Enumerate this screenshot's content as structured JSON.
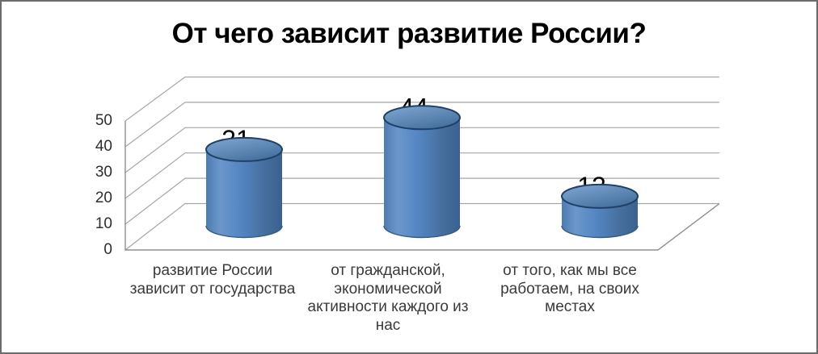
{
  "window": {
    "background": "#FFFFFF",
    "border_color": "#6B6B6B"
  },
  "chart_data": {
    "type": "bar",
    "subtype": "3d-cylinder",
    "title": "От чего зависит развитие России?",
    "categories": [
      "развитие России зависит от государства",
      "от гражданской, экономической активности каждого из нас",
      "от того, как мы все работаем, на своих местах"
    ],
    "category_lines": [
      [
        "развитие России",
        "зависит от государства"
      ],
      [
        "от гражданской,",
        "экономической",
        "активности каждого из",
        "нас"
      ],
      [
        "от того, как мы все",
        "работаем, на своих",
        "местах"
      ]
    ],
    "values": [
      31,
      44,
      12
    ],
    "xlabel": "",
    "ylabel": "",
    "ylim": [
      0,
      50
    ],
    "yticks": [
      0,
      10,
      20,
      30,
      40,
      50
    ],
    "ytick_labels_topdown": [
      "50",
      "40",
      "30",
      "20",
      "10",
      "0"
    ],
    "grid": true,
    "legend": "none",
    "colors": {
      "bar_fill": "#4F81BD",
      "bar_fill_light": "#83A8D3",
      "bar_fill_dark": "#3A6190",
      "bar_rim": "#1F4066",
      "gridline": "#A6A6A6",
      "axis": "#8F8F8F",
      "label_text": "#3A3A3A",
      "title_text": "#000000"
    }
  }
}
